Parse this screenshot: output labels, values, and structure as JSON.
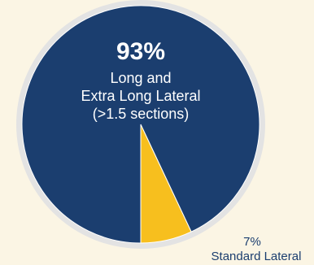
{
  "chart_data": {
    "type": "pie",
    "title": "",
    "slices": [
      {
        "label_lines": [
          "Long and",
          "Extra Long Lateral",
          "(>1.5 sections)"
        ],
        "value": 93,
        "value_label": "93%",
        "color": "#1b3e6f"
      },
      {
        "label_lines": [
          "Standard Lateral"
        ],
        "value": 7,
        "value_label": "7%",
        "color": "#f7bf1e"
      }
    ]
  },
  "colors": {
    "background": "#fbf5e4",
    "ring": "#e3e3e3",
    "label_on_dark": "#ffffff",
    "label_on_light": "#1b3e6f"
  }
}
